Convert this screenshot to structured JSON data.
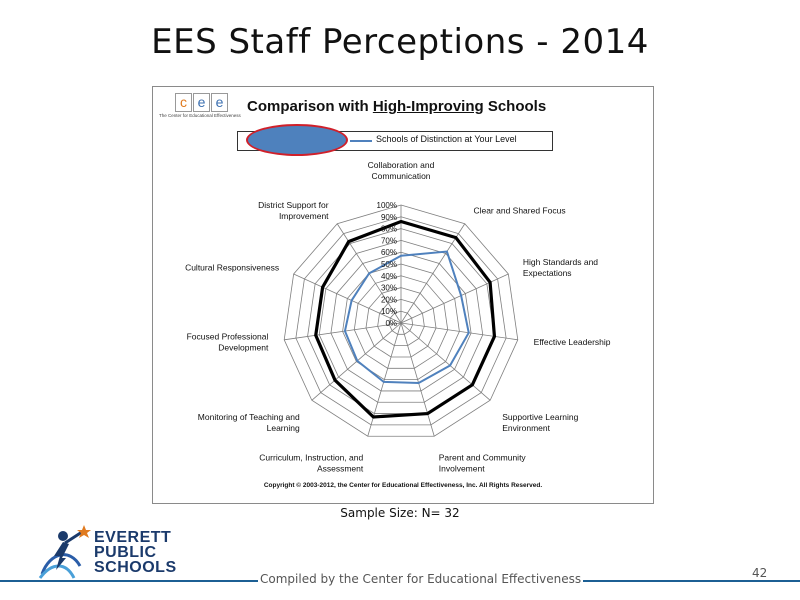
{
  "slide": {
    "title": "EES Staff Perceptions - 2014",
    "sample_size": "Sample Size: N= 32",
    "footer": "Compiled by the Center for Educational Effectiveness",
    "page_number": "42"
  },
  "logo": {
    "letters": [
      "c",
      "e",
      "e"
    ],
    "letter_colors": [
      "#e07a1f",
      "#3b6fb0",
      "#3b6fb0"
    ],
    "tagline": "The Center for Educational Effectiveness",
    "district_lines": [
      "EVERETT",
      "PUBLIC",
      "SCHOOLS"
    ]
  },
  "chart_title": {
    "prefix": "Comparison with ",
    "underlined": "High-Improving",
    "suffix": " Schools"
  },
  "copyright": "Copyright © 2003-2012, the Center for Educational Effectiveness, Inc.  All Rights Reserved.",
  "colors": {
    "series_black": "#000000",
    "series_blue": "#4f81bd",
    "legend_ellipse": "#4e81bd",
    "legend_ellipse_border": "#d0202a",
    "footer_rule": "#1c5f94",
    "grid": "#7f7f7f"
  },
  "chart_data": {
    "type": "radar",
    "categories": [
      "Collaboration and Communication",
      "Clear and Shared Focus",
      "High Standards and Expectations",
      "Effective Leadership",
      "Supportive Learning Environment",
      "Parent and Community Involvement",
      "Curriculum, Instruction, and Assessment",
      "Monitoring of Teaching and Learning",
      "Focused Professional Development",
      "Cultural Responsiveness",
      "District Support for Improvement"
    ],
    "category_lines": [
      [
        "Collaboration and",
        "Communication"
      ],
      [
        "Clear and Shared Focus"
      ],
      [
        "High Standards and",
        "Expectations"
      ],
      [
        "Effective Leadership"
      ],
      [
        "Supportive Learning",
        "Environment"
      ],
      [
        "Parent and Community",
        "Involvement"
      ],
      [
        "Curriculum, Instruction, and",
        "Assessment"
      ],
      [
        "Monitoring of Teaching and",
        "Learning"
      ],
      [
        "Focused Professional",
        "Development"
      ],
      [
        "Cultural Responsiveness"
      ],
      [
        "District Support for",
        "Improvement"
      ]
    ],
    "rlim": [
      0,
      100
    ],
    "ticks": [
      "0%",
      "10%",
      "20%",
      "30%",
      "40%",
      "50%",
      "60%",
      "70%",
      "80%",
      "90%",
      "100%"
    ],
    "series": [
      {
        "name": "",
        "color": "#000000",
        "values": [
          86,
          86,
          83,
          80,
          80,
          80,
          83,
          74,
          73,
          73,
          82
        ]
      },
      {
        "name": "Schools of Distinction at Your Level",
        "color": "#4f81bd",
        "values": [
          57,
          72,
          56,
          58,
          55,
          53,
          52,
          49,
          48,
          46,
          50
        ]
      }
    ],
    "legend": "top"
  }
}
